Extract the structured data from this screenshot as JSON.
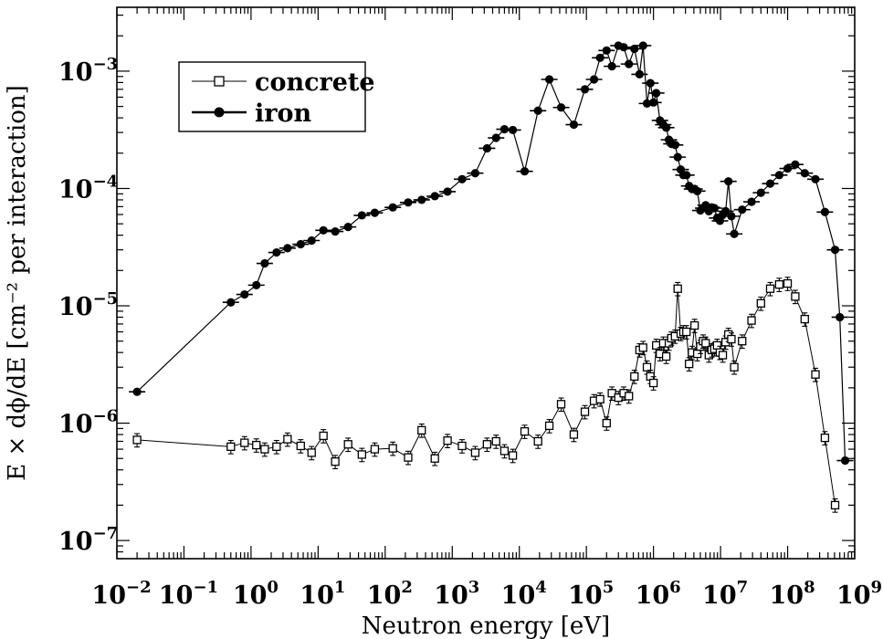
{
  "chart_data": {
    "type": "scatter",
    "xscale": "log",
    "yscale": "log",
    "xlim": [
      0.01,
      1000000000
    ],
    "ylim": [
      7e-08,
      0.0035
    ],
    "xlabel": "Neutron energy   [eV]",
    "ylabel": "E × dϕ/dE  [cm⁻² per interaction]",
    "x_ticks": [
      {
        "base": "10",
        "exp": "−2",
        "value": 0.01
      },
      {
        "base": "10",
        "exp": "−1",
        "value": 0.1
      },
      {
        "base": "10",
        "exp": "0",
        "value": 1
      },
      {
        "base": "10",
        "exp": "1",
        "value": 10
      },
      {
        "base": "10",
        "exp": "2",
        "value": 100
      },
      {
        "base": "10",
        "exp": "3",
        "value": 1000
      },
      {
        "base": "10",
        "exp": "4",
        "value": 10000
      },
      {
        "base": "10",
        "exp": "5",
        "value": 100000
      },
      {
        "base": "10",
        "exp": "6",
        "value": 1000000
      },
      {
        "base": "10",
        "exp": "7",
        "value": 10000000
      },
      {
        "base": "10",
        "exp": "8",
        "value": 100000000
      },
      {
        "base": "10",
        "exp": "9",
        "value": 1000000000
      }
    ],
    "y_ticks": [
      {
        "base": "10",
        "exp": "−7",
        "value": 1e-07
      },
      {
        "base": "10",
        "exp": "−6",
        "value": 1e-06
      },
      {
        "base": "10",
        "exp": "−5",
        "value": 1e-05
      },
      {
        "base": "10",
        "exp": "−4",
        "value": 0.0001
      },
      {
        "base": "10",
        "exp": "−3",
        "value": 0.001
      }
    ],
    "legend": {
      "position": "top-left"
    },
    "series": [
      {
        "name": "concrete",
        "marker": "open-square",
        "points": [
          [
            0.02,
            7.2e-07
          ],
          [
            0.5,
            6.3e-07
          ],
          [
            0.8,
            6.8e-07
          ],
          [
            1.2,
            6.5e-07
          ],
          [
            1.6,
            6e-07
          ],
          [
            2.4,
            6.3e-07
          ],
          [
            3.5,
            7.3e-07
          ],
          [
            5.5,
            6.4e-07
          ],
          [
            8,
            5.6e-07
          ],
          [
            12,
            7.8e-07
          ],
          [
            18,
            4.7e-07
          ],
          [
            28,
            6.6e-07
          ],
          [
            45,
            5.4e-07
          ],
          [
            70,
            6e-07
          ],
          [
            130,
            6.1e-07
          ],
          [
            220,
            5.1e-07
          ],
          [
            350,
            8.7e-07
          ],
          [
            550,
            5e-07
          ],
          [
            850,
            7.1e-07
          ],
          [
            1400,
            6.4e-07
          ],
          [
            2200,
            5.6e-07
          ],
          [
            3300,
            6.6e-07
          ],
          [
            4500,
            7e-07
          ],
          [
            6000,
            5.8e-07
          ],
          [
            8000,
            5.3e-07
          ],
          [
            12000,
            8.5e-07
          ],
          [
            19000,
            7e-07
          ],
          [
            28000,
            9.5e-07
          ],
          [
            42000,
            1.45e-06
          ],
          [
            65000,
            8e-07
          ],
          [
            95000,
            1.25e-06
          ],
          [
            130000,
            1.55e-06
          ],
          [
            160000,
            1.6e-06
          ],
          [
            200000,
            1e-06
          ],
          [
            240000,
            1.8e-06
          ],
          [
            300000,
            1.65e-06
          ],
          [
            360000,
            1.8e-06
          ],
          [
            430000,
            1.7e-06
          ],
          [
            520000,
            2.5e-06
          ],
          [
            620000,
            4.2e-06
          ],
          [
            700000,
            4.4e-06
          ],
          [
            800000,
            3e-06
          ],
          [
            900000,
            2.5e-06
          ],
          [
            1000000,
            2.2e-06
          ],
          [
            1100000,
            4.6e-06
          ],
          [
            1250000,
            3.9e-06
          ],
          [
            1400000,
            4.8e-06
          ],
          [
            1550000,
            3.7e-06
          ],
          [
            1700000,
            4.8e-06
          ],
          [
            1850000,
            5.3e-06
          ],
          [
            2100000,
            5.5e-06
          ],
          [
            2300000,
            1.4e-05
          ],
          [
            2550000,
            5.8e-06
          ],
          [
            2800000,
            6e-06
          ],
          [
            3100000,
            6e-06
          ],
          [
            3400000,
            3.2e-06
          ],
          [
            3750000,
            4e-06
          ],
          [
            4100000,
            6.8e-06
          ],
          [
            4500000,
            3.9e-06
          ],
          [
            5000000,
            4.5e-06
          ],
          [
            5500000,
            5e-06
          ],
          [
            6000000,
            4.8e-06
          ],
          [
            6700000,
            3.8e-06
          ],
          [
            7400000,
            4.2e-06
          ],
          [
            8100000,
            4.3e-06
          ],
          [
            8900000,
            4.6e-06
          ],
          [
            9800000,
            4e-06
          ],
          [
            10800000,
            3.8e-06
          ],
          [
            11900000,
            4.9e-06
          ],
          [
            13100000,
            5.7e-06
          ],
          [
            14500000,
            5.2e-06
          ],
          [
            16000000,
            3e-06
          ],
          [
            21000000,
            5e-06
          ],
          [
            29000000,
            7.5e-06
          ],
          [
            40000000,
            1.05e-05
          ],
          [
            55000000,
            1.4e-05
          ],
          [
            75000000,
            1.52e-05
          ],
          [
            100000000,
            1.55e-05
          ],
          [
            130000000,
            1.2e-05
          ],
          [
            180000000,
            7.7e-06
          ],
          [
            260000000,
            2.6e-06
          ],
          [
            360000000,
            7.5e-07
          ],
          [
            510000000,
            2e-07
          ]
        ]
      },
      {
        "name": "iron",
        "marker": "filled-circle",
        "points": [
          [
            0.02,
            1.85e-06
          ],
          [
            0.5,
            1.07e-05
          ],
          [
            0.8,
            1.25e-05
          ],
          [
            1.2,
            1.5e-05
          ],
          [
            1.6,
            2.3e-05
          ],
          [
            2.4,
            2.85e-05
          ],
          [
            3.5,
            3.1e-05
          ],
          [
            5.5,
            3.35e-05
          ],
          [
            8,
            3.6e-05
          ],
          [
            12,
            4.4e-05
          ],
          [
            18,
            4.3e-05
          ],
          [
            28,
            4.7e-05
          ],
          [
            45,
            5.9e-05
          ],
          [
            70,
            6.2e-05
          ],
          [
            130,
            6.9e-05
          ],
          [
            220,
            7.6e-05
          ],
          [
            350,
            8e-05
          ],
          [
            550,
            8.6e-05
          ],
          [
            850,
            9.4e-05
          ],
          [
            1400,
            0.00012
          ],
          [
            2200,
            0.000135
          ],
          [
            3300,
            0.00022
          ],
          [
            4500,
            0.00027
          ],
          [
            6000,
            0.00032
          ],
          [
            8000,
            0.000315
          ],
          [
            12000,
            0.00014
          ],
          [
            19000,
            0.00046
          ],
          [
            28000,
            0.00085
          ],
          [
            42000,
            0.00049
          ],
          [
            65000,
            0.00035
          ],
          [
            95000,
            0.0007
          ],
          [
            130000,
            0.00085
          ],
          [
            160000,
            0.0013
          ],
          [
            200000,
            0.0015
          ],
          [
            240000,
            0.0011
          ],
          [
            300000,
            0.00165
          ],
          [
            360000,
            0.0016
          ],
          [
            430000,
            0.00115
          ],
          [
            520000,
            0.00155
          ],
          [
            620000,
            0.00094
          ],
          [
            700000,
            0.00165
          ],
          [
            800000,
            0.00053
          ],
          [
            900000,
            0.00079
          ],
          [
            1000000,
            0.00054
          ],
          [
            1100000,
            0.00065
          ],
          [
            1250000,
            0.00038
          ],
          [
            1400000,
            0.00035
          ],
          [
            1550000,
            0.00033
          ],
          [
            1700000,
            0.00026
          ],
          [
            1850000,
            0.00024
          ],
          [
            2100000,
            0.000235
          ],
          [
            2300000,
            0.000185
          ],
          [
            2550000,
            0.000145
          ],
          [
            2800000,
            0.00013
          ],
          [
            3100000,
            0.00013
          ],
          [
            3400000,
            0.000105
          ],
          [
            3750000,
            9.9e-05
          ],
          [
            4100000,
            9.9e-05
          ],
          [
            4500000,
            9.5e-05
          ],
          [
            5000000,
            6.5e-05
          ],
          [
            5500000,
            6.8e-05
          ],
          [
            6000000,
            7.2e-05
          ],
          [
            6700000,
            6.4e-05
          ],
          [
            7400000,
            6.9e-05
          ],
          [
            8100000,
            6.8e-05
          ],
          [
            8900000,
            5.6e-05
          ],
          [
            9800000,
            5.3e-05
          ],
          [
            10800000,
            6e-05
          ],
          [
            11900000,
            6.4e-05
          ],
          [
            13100000,
            0.000115
          ],
          [
            14500000,
            5.8e-05
          ],
          [
            16000000,
            4.1e-05
          ],
          [
            21000000,
            6.6e-05
          ],
          [
            29000000,
            7.7e-05
          ],
          [
            40000000,
            9.2e-05
          ],
          [
            55000000,
            0.00011
          ],
          [
            75000000,
            0.00013
          ],
          [
            100000000,
            0.000148
          ],
          [
            130000000,
            0.00016
          ],
          [
            180000000,
            0.000135
          ],
          [
            260000000,
            0.00012
          ],
          [
            360000000,
            6.3e-05
          ],
          [
            510000000,
            3e-05
          ],
          [
            600000000,
            8e-06
          ],
          [
            720000000,
            4.8e-07
          ]
        ]
      }
    ]
  }
}
